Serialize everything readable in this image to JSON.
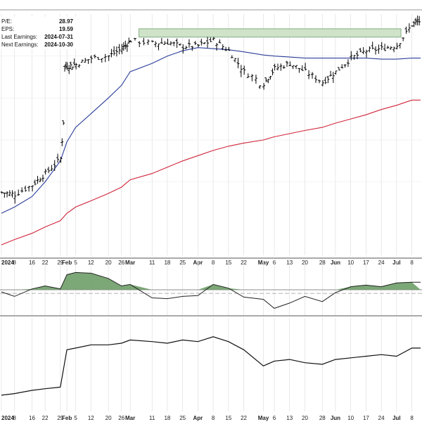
{
  "stats": [
    {
      "label": "P/E:",
      "value": "28.97"
    },
    {
      "label": "EPS:",
      "value": "19.59"
    },
    {
      "label": "Last Earnings:",
      "value": "2024-07-31"
    },
    {
      "label": "Next Earnings:",
      "value": "2024-10-30"
    }
  ],
  "colors": {
    "price": "#000000",
    "ma_short": "#2b3d9a",
    "ma_long": "#d0253a",
    "resistance_fill": "#cfe3c9",
    "resistance_stroke": "#6ea06e",
    "momentum_fill": "#6e9d68",
    "grid": "#d9d9d9"
  },
  "x_axis": {
    "ticks": [
      {
        "label": "2024",
        "bold": true
      },
      {
        "label": "8",
        "bold": false
      },
      {
        "label": "16",
        "bold": false
      },
      {
        "label": "22",
        "bold": false
      },
      {
        "label": "29",
        "bold": false
      },
      {
        "label": "Feb",
        "bold": true
      },
      {
        "label": "5",
        "bold": false
      },
      {
        "label": "12",
        "bold": false
      },
      {
        "label": "20",
        "bold": false
      },
      {
        "label": "26",
        "bold": false
      },
      {
        "label": "Mar",
        "bold": true
      },
      {
        "label": "11",
        "bold": false
      },
      {
        "label": "18",
        "bold": false
      },
      {
        "label": "25",
        "bold": false
      },
      {
        "label": "Apr",
        "bold": true
      },
      {
        "label": "8",
        "bold": false
      },
      {
        "label": "15",
        "bold": false
      },
      {
        "label": "22",
        "bold": false
      },
      {
        "label": "May",
        "bold": true
      },
      {
        "label": "6",
        "bold": false
      },
      {
        "label": "13",
        "bold": false
      },
      {
        "label": "20",
        "bold": false
      },
      {
        "label": "28",
        "bold": false
      },
      {
        "label": "Jun",
        "bold": true
      },
      {
        "label": "10",
        "bold": false
      },
      {
        "label": "17",
        "bold": false
      },
      {
        "label": "24",
        "bold": false
      },
      {
        "label": "Jul",
        "bold": true
      },
      {
        "label": "8",
        "bold": false
      }
    ]
  },
  "chart_data": {
    "type": "line",
    "panels": [
      "price",
      "momentum",
      "relative_strength"
    ],
    "x": [
      "2024-01-02",
      "2024-01-08",
      "2024-01-16",
      "2024-01-22",
      "2024-01-29",
      "2024-02-01",
      "2024-02-05",
      "2024-02-12",
      "2024-02-20",
      "2024-02-26",
      "2024-03-01",
      "2024-03-11",
      "2024-03-18",
      "2024-03-25",
      "2024-04-01",
      "2024-04-08",
      "2024-04-15",
      "2024-04-22",
      "2024-05-01",
      "2024-05-06",
      "2024-05-13",
      "2024-05-20",
      "2024-05-28",
      "2024-06-03",
      "2024-06-10",
      "2024-06-17",
      "2024-06-24",
      "2024-07-01",
      "2024-07-08"
    ],
    "series": [
      {
        "panel": "price",
        "values": [
          270,
          268,
          277,
          288,
          302,
          390,
          392,
          398,
          400,
          407,
          415,
          412,
          413,
          409,
          410,
          415,
          405,
          385,
          374,
          388,
          393,
          385,
          375,
          385,
          398,
          405,
          407,
          410,
          430
        ]
      },
      {
        "panel": "price",
        "values": [
          250,
          256,
          266,
          280,
          300,
          318,
          332,
          345,
          360,
          372,
          385,
          393,
          400,
          405,
          408,
          407,
          406,
          404,
          401,
          400,
          399,
          398,
          398,
          398,
          398,
          398,
          397,
          397,
          398
        ]
      },
      {
        "panel": "price",
        "values": [
          220,
          225,
          231,
          237,
          243,
          250,
          256,
          262,
          269,
          275,
          282,
          288,
          294,
          300,
          305,
          310,
          314,
          317,
          320,
          323,
          326,
          329,
          332,
          336,
          340,
          344,
          349,
          353,
          358
        ]
      },
      {
        "panel": "momentum",
        "values": [
          2,
          -4,
          6,
          10,
          6,
          25,
          28,
          27,
          20,
          10,
          12,
          -6,
          -7,
          -4,
          -3,
          12,
          7,
          -5,
          -8,
          -20,
          -13,
          -4,
          -11,
          1,
          9,
          11,
          9,
          14,
          15
        ]
      },
      {
        "panel": "relative_strength",
        "values": [
          1.0,
          1.01,
          1.03,
          1.04,
          1.05,
          1.28,
          1.29,
          1.31,
          1.31,
          1.32,
          1.34,
          1.33,
          1.32,
          1.34,
          1.33,
          1.36,
          1.33,
          1.28,
          1.18,
          1.21,
          1.22,
          1.2,
          1.19,
          1.22,
          1.23,
          1.24,
          1.25,
          1.24,
          1.29
        ]
      }
    ],
    "resistance_zone": {
      "from": "2024-03-05",
      "to": "2024-07-03",
      "low": 418,
      "high": 426
    },
    "momentum_range": [
      -30,
      34
    ],
    "price_range": [
      210,
      440
    ],
    "rs_range": [
      0.9,
      1.45
    ],
    "grid": true
  }
}
